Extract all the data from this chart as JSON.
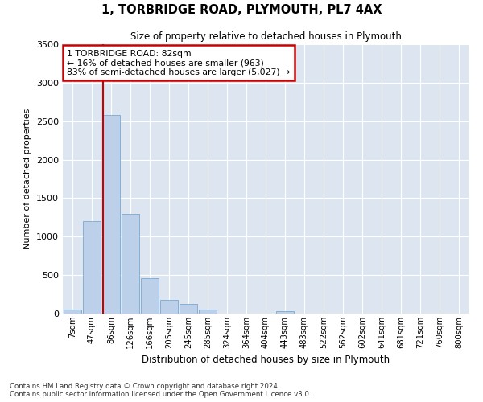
{
  "title1": "1, TORBRIDGE ROAD, PLYMOUTH, PL7 4AX",
  "title2": "Size of property relative to detached houses in Plymouth",
  "xlabel": "Distribution of detached houses by size in Plymouth",
  "ylabel": "Number of detached properties",
  "bin_labels": [
    "7sqm",
    "47sqm",
    "86sqm",
    "126sqm",
    "166sqm",
    "205sqm",
    "245sqm",
    "285sqm",
    "324sqm",
    "364sqm",
    "404sqm",
    "443sqm",
    "483sqm",
    "522sqm",
    "562sqm",
    "602sqm",
    "641sqm",
    "681sqm",
    "721sqm",
    "760sqm",
    "800sqm"
  ],
  "bar_values": [
    50,
    1200,
    2580,
    1300,
    460,
    175,
    130,
    50,
    0,
    0,
    0,
    30,
    0,
    0,
    0,
    0,
    0,
    0,
    0,
    0,
    0
  ],
  "bar_color": "#bdd0e9",
  "bar_edge_color": "#7aaad0",
  "background_color": "#dde6f0",
  "grid_color": "#ffffff",
  "vline_color": "#cc0000",
  "vline_x": 1.58,
  "annotation_text": "1 TORBRIDGE ROAD: 82sqm\n← 16% of detached houses are smaller (963)\n83% of semi-detached houses are larger (5,027) →",
  "annotation_box_color": "#cc0000",
  "ylim": [
    0,
    3500
  ],
  "yticks": [
    0,
    500,
    1000,
    1500,
    2000,
    2500,
    3000,
    3500
  ],
  "footnote1": "Contains HM Land Registry data © Crown copyright and database right 2024.",
  "footnote2": "Contains public sector information licensed under the Open Government Licence v3.0."
}
